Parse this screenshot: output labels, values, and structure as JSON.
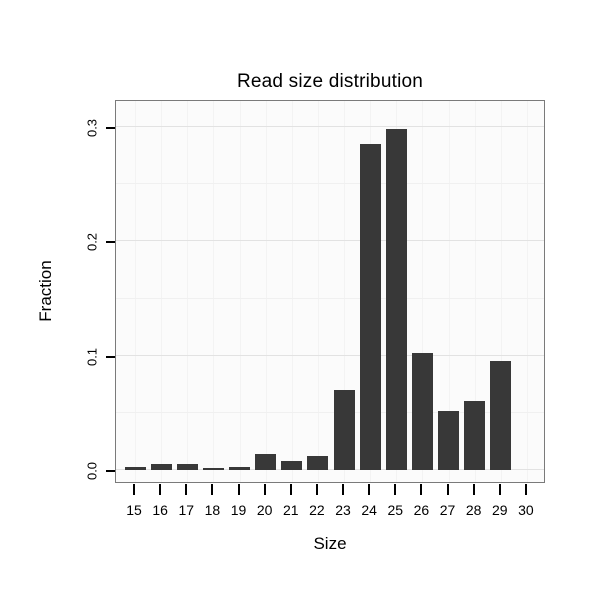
{
  "chart_data": {
    "type": "bar",
    "title": "Read size distribution",
    "xlabel": "Size",
    "ylabel": "Fraction",
    "categories": [
      "15",
      "16",
      "17",
      "18",
      "19",
      "20",
      "21",
      "22",
      "23",
      "24",
      "25",
      "26",
      "27",
      "28",
      "29",
      "30"
    ],
    "values": [
      0.003,
      0.005,
      0.005,
      0.002,
      0.003,
      0.014,
      0.008,
      0.012,
      0.07,
      0.285,
      0.298,
      0.102,
      0.052,
      0.06,
      0.095,
      0.0
    ],
    "ylim": [
      0,
      0.3
    ],
    "yticks": [
      {
        "value": 0.0,
        "label": "0.0"
      },
      {
        "value": 0.1,
        "label": "0.1"
      },
      {
        "value": 0.2,
        "label": "0.2"
      },
      {
        "value": 0.3,
        "label": "0.3"
      }
    ],
    "grid": true,
    "legend": "none",
    "bar_color": "#383838",
    "panel_background": "#fbfbfb",
    "panel_border_color": "#7a7a7a",
    "tick_color": "#000000"
  }
}
